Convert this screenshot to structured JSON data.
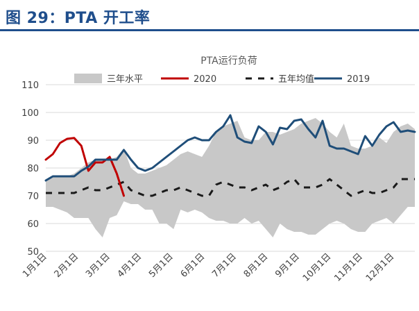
{
  "figure_title": "图 29：PTA 开工率",
  "chart_data": {
    "type": "line",
    "title": "PTA运行负荷",
    "xlabel": "",
    "ylabel": "",
    "ylim": [
      50,
      110
    ],
    "yticks": [
      50,
      60,
      70,
      80,
      90,
      100,
      110
    ],
    "x_tick_labels": [
      "1月1日",
      "2月1日",
      "3月1日",
      "4月1日",
      "5月1日",
      "6月1日",
      "7月1日",
      "8月1日",
      "9月1日",
      "10月1日",
      "11月1日",
      "12月1日"
    ],
    "x_index_range": [
      0,
      52
    ],
    "grid": "horizontal",
    "legend_position": "top",
    "colors": {
      "band": "#c8c8c8",
      "s2020": "#c00000",
      "avg5": "#1a1a1a",
      "s2019": "#1f4e79",
      "grid": "#d9d9d9",
      "axis_text": "#404040",
      "title_text": "#595959"
    },
    "series": [
      {
        "name": "三年水平",
        "kind": "band",
        "lower": [
          66,
          66,
          65,
          64,
          62,
          62,
          62,
          58,
          55,
          62,
          63,
          68,
          67,
          67,
          65,
          65,
          60,
          60,
          58,
          65,
          64,
          65,
          64,
          62,
          61,
          61,
          60,
          60,
          62,
          60,
          61,
          58,
          55,
          60,
          58,
          57,
          57,
          56,
          56,
          58,
          60,
          61,
          60,
          58,
          57,
          57,
          60,
          61,
          62,
          60,
          63,
          66,
          66
        ],
        "upper": [
          76,
          77,
          77,
          77,
          78,
          80,
          82,
          83,
          83,
          83,
          84,
          87,
          80,
          78,
          78,
          79,
          80,
          81,
          83,
          85,
          86,
          85,
          84,
          88,
          93,
          95,
          96,
          97,
          91,
          90,
          90,
          93,
          93,
          92,
          93,
          94,
          96,
          97,
          98,
          96,
          93,
          91,
          96,
          88,
          87,
          87,
          88,
          91,
          89,
          93,
          95,
          96,
          94
        ]
      },
      {
        "name": "2020",
        "kind": "line",
        "style": "solid",
        "values": [
          83,
          85,
          89,
          90.5,
          90.8,
          88,
          79,
          82,
          82,
          84,
          78,
          70
        ]
      },
      {
        "name": "五年均值",
        "kind": "line",
        "style": "dashed",
        "values": [
          71,
          71,
          71,
          71,
          71,
          72,
          73,
          72,
          72,
          73,
          74,
          75,
          72,
          71,
          70,
          70,
          71,
          72,
          72,
          73,
          72,
          71,
          70,
          70,
          74,
          75,
          74,
          73,
          73,
          72,
          73,
          74,
          72,
          73,
          75,
          76,
          73,
          73,
          73,
          74,
          76,
          74,
          72,
          70,
          71,
          72,
          71,
          71,
          72,
          73,
          76,
          76,
          76
        ]
      },
      {
        "name": "2019",
        "kind": "line",
        "style": "solid",
        "values": [
          75.5,
          77,
          77,
          77,
          77,
          79,
          80.5,
          83,
          83,
          83,
          83,
          86.5,
          83,
          80,
          79,
          80,
          82,
          84,
          86,
          88,
          90,
          91,
          90,
          90,
          93,
          95,
          99,
          91,
          89.5,
          89,
          95,
          93,
          88.5,
          94.5,
          94,
          97,
          97.5,
          94,
          91,
          97,
          88,
          87,
          87,
          86,
          85,
          91.5,
          88,
          92,
          95,
          96.5,
          93,
          93.5,
          93
        ]
      }
    ]
  }
}
